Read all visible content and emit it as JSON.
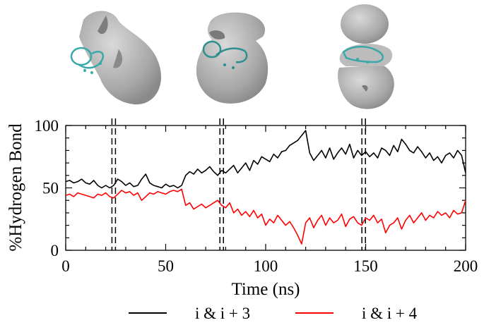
{
  "chart_data": {
    "type": "line",
    "xlabel": "Time (ns)",
    "ylabel": "%Hydrogen Bond",
    "xlim": [
      0,
      200
    ],
    "ylim": [
      0,
      100
    ],
    "xticks": [
      0,
      50,
      100,
      150,
      200
    ],
    "yticks": [
      0,
      50,
      100
    ],
    "grid": false,
    "legend_position": "bottom",
    "markers": [
      24,
      78,
      149
    ],
    "series": [
      {
        "name": "i & i + 3",
        "color": "#000000",
        "x": [
          0,
          2,
          4,
          6,
          8,
          10,
          12,
          14,
          16,
          18,
          20,
          22,
          24,
          26,
          28,
          30,
          32,
          34,
          36,
          38,
          40,
          42,
          44,
          46,
          48,
          50,
          52,
          54,
          56,
          58,
          60,
          62,
          64,
          66,
          68,
          70,
          72,
          74,
          76,
          78,
          80,
          82,
          84,
          86,
          88,
          90,
          92,
          94,
          96,
          98,
          100,
          102,
          104,
          106,
          108,
          110,
          112,
          114,
          116,
          118,
          120,
          122,
          124,
          126,
          128,
          130,
          132,
          134,
          136,
          138,
          140,
          142,
          144,
          146,
          148,
          150,
          152,
          154,
          156,
          158,
          160,
          162,
          164,
          166,
          168,
          170,
          172,
          174,
          176,
          178,
          180,
          182,
          184,
          186,
          188,
          190,
          192,
          194,
          196,
          198,
          200
        ],
        "values": [
          55,
          56,
          54,
          55,
          57,
          54,
          53,
          56,
          52,
          50,
          52,
          50,
          52,
          57,
          55,
          52,
          54,
          51,
          52,
          57,
          61,
          54,
          52,
          51,
          50,
          53,
          51,
          52,
          50,
          52,
          60,
          63,
          61,
          65,
          62,
          64,
          67,
          63,
          60,
          64,
          62,
          65,
          68,
          62,
          66,
          70,
          64,
          72,
          69,
          75,
          73,
          71,
          77,
          74,
          79,
          80,
          84,
          86,
          88,
          92,
          96,
          78,
          72,
          76,
          80,
          74,
          82,
          73,
          78,
          82,
          77,
          85,
          74,
          80,
          76,
          79,
          75,
          78,
          74,
          82,
          80,
          76,
          84,
          79,
          89,
          85,
          80,
          78,
          83,
          79,
          74,
          78,
          72,
          75,
          70,
          76,
          78,
          74,
          80,
          76,
          62
        ]
      },
      {
        "name": "i & i + 4",
        "color": "#ff0000",
        "x": [
          0,
          2,
          4,
          6,
          8,
          10,
          12,
          14,
          16,
          18,
          20,
          22,
          24,
          26,
          28,
          30,
          32,
          34,
          36,
          38,
          40,
          42,
          44,
          46,
          48,
          50,
          52,
          54,
          56,
          58,
          60,
          62,
          64,
          66,
          68,
          70,
          72,
          74,
          76,
          78,
          80,
          82,
          84,
          86,
          88,
          90,
          92,
          94,
          96,
          98,
          100,
          102,
          104,
          106,
          108,
          110,
          112,
          114,
          116,
          118,
          120,
          122,
          124,
          126,
          128,
          130,
          132,
          134,
          136,
          138,
          140,
          142,
          144,
          146,
          148,
          150,
          152,
          154,
          156,
          158,
          160,
          162,
          164,
          166,
          168,
          170,
          172,
          174,
          176,
          178,
          180,
          182,
          184,
          186,
          188,
          190,
          192,
          194,
          196,
          198,
          200
        ],
        "values": [
          44,
          45,
          43,
          46,
          45,
          44,
          43,
          42,
          45,
          44,
          46,
          43,
          42,
          45,
          48,
          46,
          47,
          44,
          46,
          40,
          43,
          46,
          45,
          47,
          46,
          45,
          47,
          48,
          47,
          49,
          36,
          38,
          33,
          35,
          37,
          34,
          36,
          38,
          40,
          36,
          34,
          38,
          30,
          33,
          28,
          31,
          27,
          32,
          26,
          29,
          20,
          25,
          22,
          28,
          24,
          20,
          23,
          18,
          12,
          5,
          22,
          26,
          18,
          24,
          28,
          20,
          26,
          22,
          24,
          29,
          19,
          25,
          27,
          22,
          20,
          26,
          24,
          28,
          22,
          25,
          14,
          20,
          22,
          26,
          17,
          24,
          28,
          22,
          26,
          30,
          24,
          28,
          26,
          31,
          28,
          30,
          26,
          32,
          29,
          30,
          40
        ]
      }
    ]
  },
  "structures": [
    {
      "marker_time": 24
    },
    {
      "marker_time": 78
    },
    {
      "marker_time": 149
    }
  ]
}
